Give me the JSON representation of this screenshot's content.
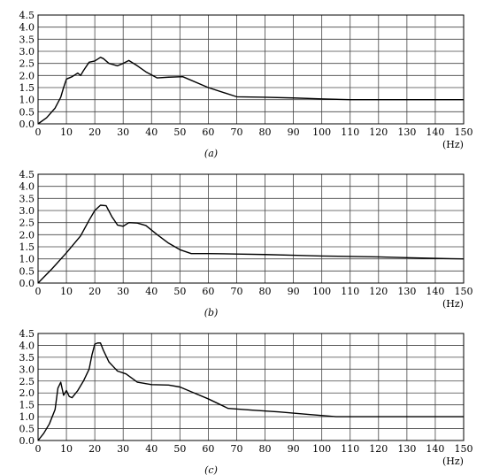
{
  "chart_data": [
    {
      "type": "line",
      "panel_label": "(a)",
      "unit_label": "(Hz)",
      "x_ticks": [
        "0",
        "10",
        "20",
        "30",
        "40",
        "50",
        "60",
        "70",
        "80",
        "90",
        "100",
        "110",
        "120",
        "130",
        "140",
        "150"
      ],
      "y_ticks": [
        "0.0",
        "0.5",
        "1.0",
        "1.5",
        "2.0",
        "2.5",
        "3.0",
        "3.5",
        "4.0",
        "4.5"
      ],
      "xlim": [
        0,
        150
      ],
      "ylim": [
        0,
        4.5
      ],
      "grid": true,
      "series": [
        {
          "color": "#000000",
          "points": [
            [
              0,
              0
            ],
            [
              3,
              0.25
            ],
            [
              6,
              0.65
            ],
            [
              8,
              1.1
            ],
            [
              9,
              1.5
            ],
            [
              10,
              1.85
            ],
            [
              12,
              1.95
            ],
            [
              14,
              2.1
            ],
            [
              15,
              2.0
            ],
            [
              16,
              2.2
            ],
            [
              18,
              2.55
            ],
            [
              20,
              2.6
            ],
            [
              22,
              2.75
            ],
            [
              23,
              2.7
            ],
            [
              25,
              2.5
            ],
            [
              28,
              2.4
            ],
            [
              30,
              2.5
            ],
            [
              32,
              2.62
            ],
            [
              35,
              2.4
            ],
            [
              38,
              2.15
            ],
            [
              42,
              1.9
            ],
            [
              46,
              1.93
            ],
            [
              51,
              1.95
            ],
            [
              60,
              1.5
            ],
            [
              70,
              1.12
            ],
            [
              80,
              1.1
            ],
            [
              90,
              1.07
            ],
            [
              100,
              1.03
            ],
            [
              110,
              1.0
            ],
            [
              120,
              1.0
            ],
            [
              130,
              1.0
            ],
            [
              140,
              1.0
            ],
            [
              150,
              1.0
            ]
          ]
        }
      ]
    },
    {
      "type": "line",
      "panel_label": "(b)",
      "unit_label": "(Hz)",
      "x_ticks": [
        "0",
        "10",
        "20",
        "30",
        "40",
        "50",
        "60",
        "70",
        "80",
        "90",
        "100",
        "110",
        "120",
        "130",
        "140",
        "150"
      ],
      "y_ticks": [
        "0.0",
        "0.5",
        "1.0",
        "1.5",
        "2.0",
        "2.5",
        "3.0",
        "3.5",
        "4.0",
        "4.5"
      ],
      "xlim": [
        0,
        150
      ],
      "ylim": [
        0,
        4.5
      ],
      "grid": true,
      "series": [
        {
          "color": "#000000",
          "points": [
            [
              0,
              0
            ],
            [
              5,
              0.6
            ],
            [
              10,
              1.25
            ],
            [
              15,
              1.95
            ],
            [
              18,
              2.6
            ],
            [
              20,
              3.0
            ],
            [
              22,
              3.22
            ],
            [
              24,
              3.2
            ],
            [
              26,
              2.75
            ],
            [
              28,
              2.4
            ],
            [
              30,
              2.35
            ],
            [
              32,
              2.5
            ],
            [
              35,
              2.48
            ],
            [
              38,
              2.38
            ],
            [
              42,
              2.0
            ],
            [
              46,
              1.65
            ],
            [
              50,
              1.38
            ],
            [
              54,
              1.22
            ],
            [
              60,
              1.22
            ],
            [
              70,
              1.2
            ],
            [
              80,
              1.18
            ],
            [
              90,
              1.15
            ],
            [
              100,
              1.12
            ],
            [
              110,
              1.1
            ],
            [
              120,
              1.08
            ],
            [
              130,
              1.05
            ],
            [
              140,
              1.02
            ],
            [
              150,
              1.0
            ]
          ]
        }
      ]
    },
    {
      "type": "line",
      "panel_label": "(c)",
      "unit_label": "(Hz)",
      "x_ticks": [
        "0",
        "10",
        "20",
        "30",
        "40",
        "50",
        "60",
        "70",
        "80",
        "90",
        "100",
        "110",
        "120",
        "130",
        "140",
        "150"
      ],
      "y_ticks": [
        "0.0",
        "0.5",
        "1.0",
        "1.5",
        "2.0",
        "2.5",
        "3.0",
        "3.5",
        "4.0",
        "4.5"
      ],
      "xlim": [
        0,
        150
      ],
      "ylim": [
        0,
        4.5
      ],
      "grid": true,
      "series": [
        {
          "color": "#000000",
          "points": [
            [
              0,
              0
            ],
            [
              2,
              0.3
            ],
            [
              4,
              0.7
            ],
            [
              6,
              1.3
            ],
            [
              7,
              2.2
            ],
            [
              8,
              2.45
            ],
            [
              9,
              1.9
            ],
            [
              10,
              2.1
            ],
            [
              11,
              1.85
            ],
            [
              12,
              1.8
            ],
            [
              14,
              2.1
            ],
            [
              16,
              2.5
            ],
            [
              18,
              3.0
            ],
            [
              19,
              3.6
            ],
            [
              20,
              4.05
            ],
            [
              21,
              4.1
            ],
            [
              22,
              4.1
            ],
            [
              23,
              3.8
            ],
            [
              25,
              3.3
            ],
            [
              28,
              2.92
            ],
            [
              31,
              2.8
            ],
            [
              35,
              2.45
            ],
            [
              40,
              2.35
            ],
            [
              46,
              2.33
            ],
            [
              50,
              2.25
            ],
            [
              55,
              2.0
            ],
            [
              60,
              1.75
            ],
            [
              67,
              1.35
            ],
            [
              75,
              1.28
            ],
            [
              85,
              1.2
            ],
            [
              95,
              1.1
            ],
            [
              105,
              1.0
            ],
            [
              115,
              1.0
            ],
            [
              125,
              1.0
            ],
            [
              135,
              1.0
            ],
            [
              145,
              1.0
            ],
            [
              150,
              1.0
            ]
          ]
        }
      ]
    }
  ]
}
